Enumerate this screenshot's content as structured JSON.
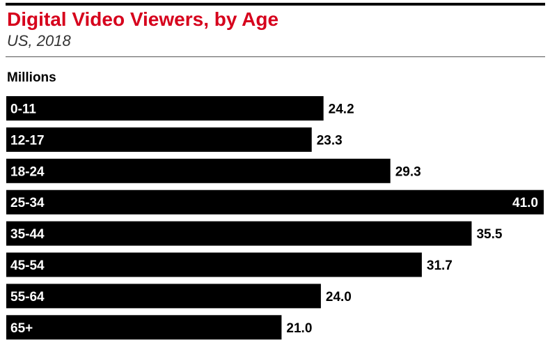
{
  "header": {
    "title": "Digital Video Viewers, by Age",
    "subtitle": "US, 2018",
    "unit": "Millions"
  },
  "colors": {
    "title": "#d6001c",
    "bar": "#000000"
  },
  "chart_data": {
    "type": "bar",
    "orientation": "horizontal",
    "title": "Digital Video Viewers, by Age",
    "subtitle": "US, 2018",
    "xlabel": "",
    "ylabel": "Millions",
    "categories": [
      "0-11",
      "12-17",
      "18-24",
      "25-34",
      "35-44",
      "45-54",
      "55-64",
      "65+"
    ],
    "values": [
      24.2,
      23.3,
      29.3,
      41.0,
      35.5,
      31.7,
      24.0,
      21.0
    ],
    "value_labels": [
      "24.2",
      "23.3",
      "29.3",
      "41.0",
      "35.5",
      "31.7",
      "24.0",
      "21.0"
    ],
    "xlim": [
      0,
      41.0
    ],
    "grid": false,
    "legend": "none"
  }
}
